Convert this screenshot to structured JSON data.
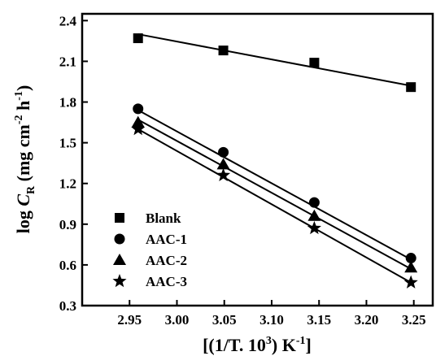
{
  "chart_data": {
    "type": "scatter",
    "xlabel": "[(1/T. 10^3) K^-1]",
    "ylabel": "log C_R (mg cm^-2 h^-1)",
    "xlim": [
      2.9,
      3.27
    ],
    "ylim": [
      0.3,
      2.45
    ],
    "x_ticks": [
      2.95,
      3.0,
      3.05,
      3.1,
      3.15,
      3.2,
      3.25
    ],
    "x_tick_labels": [
      "2.95",
      "3.00",
      "3.05",
      "3.10",
      "3.15",
      "3.20",
      "3.25"
    ],
    "y_ticks": [
      0.3,
      0.6,
      0.9,
      1.2,
      1.5,
      1.8,
      2.1,
      2.4
    ],
    "y_tick_labels": [
      "0.3",
      "0.6",
      "0.9",
      "1.2",
      "1.5",
      "1.8",
      "2.1",
      "2.4"
    ],
    "x": [
      2.959,
      3.049,
      3.145,
      3.247
    ],
    "series": [
      {
        "name": "Blank",
        "marker": "square",
        "values": [
          2.27,
          2.18,
          2.09,
          1.91
        ],
        "fit": [
          2.3,
          1.92
        ]
      },
      {
        "name": "AAC-1",
        "marker": "circle",
        "values": [
          1.75,
          1.43,
          1.06,
          0.65
        ],
        "fit": [
          1.74,
          0.64
        ]
      },
      {
        "name": "AAC-2",
        "marker": "triangle",
        "values": [
          1.65,
          1.34,
          0.96,
          0.58
        ],
        "fit": [
          1.67,
          0.57
        ]
      },
      {
        "name": "AAC-3",
        "marker": "star",
        "values": [
          1.6,
          1.26,
          0.87,
          0.47
        ],
        "fit": [
          1.6,
          0.47
        ]
      }
    ],
    "legend_position": "bottom-left",
    "grid": false,
    "colors": {
      "marks": "#000000",
      "background": "#ffffff"
    }
  }
}
